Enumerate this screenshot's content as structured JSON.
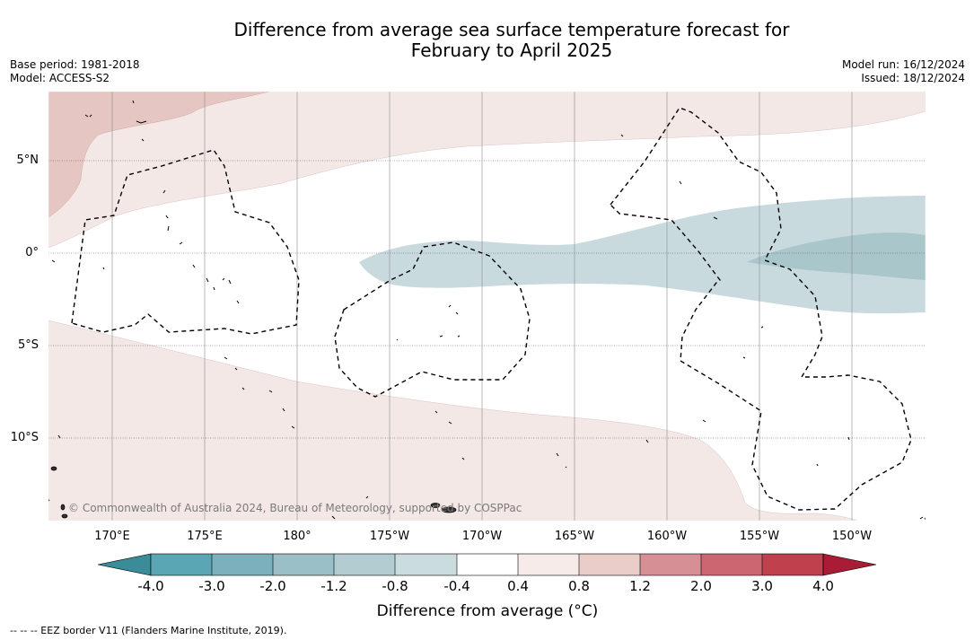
{
  "title": {
    "line1": "Difference from average sea surface temperature forecast for",
    "line2": "February to April 2025"
  },
  "meta_left": {
    "base_period": "Base period: 1981-2018",
    "model": "Model: ACCESS-S2"
  },
  "meta_right": {
    "model_run": "Model run: 16/12/2024",
    "issued": "Issued: 18/12/2024"
  },
  "map": {
    "lat_labels": [
      "5°N",
      "0°",
      "5°S",
      "10°S"
    ],
    "lon_labels": [
      "170°E",
      "175°E",
      "180°",
      "175°W",
      "170°W",
      "165°W",
      "160°W",
      "155°W",
      "150°W"
    ],
    "copyright": "© Commonwealth of Australia 2024, Bureau of Meteorology, supported by COSPPac",
    "colors": {
      "warm_light": "#f4e8e6",
      "warm_mid": "#e6c6c2",
      "cool_light": "#c9dadf",
      "cool_mid": "#a9c6cb"
    }
  },
  "colorbar": {
    "ticks": [
      "-4.0",
      "-3.0",
      "-2.0",
      "-1.2",
      "-0.8",
      "-0.4",
      "0.4",
      "0.8",
      "1.2",
      "2.0",
      "3.0",
      "4.0"
    ],
    "colors": [
      "#3b8c99",
      "#5aa6b4",
      "#7cb0bc",
      "#9bbfc6",
      "#b2ccd1",
      "#cbdcdf",
      "#ffffff",
      "#f6ebe9",
      "#eacdc8",
      "#d78f96",
      "#cc6670",
      "#c0404e",
      "#a81d35"
    ],
    "label": "Difference from average (°C)"
  },
  "footnote": "-- -- -- EEZ border V11 (Flanders Marine Institute, 2019)."
}
